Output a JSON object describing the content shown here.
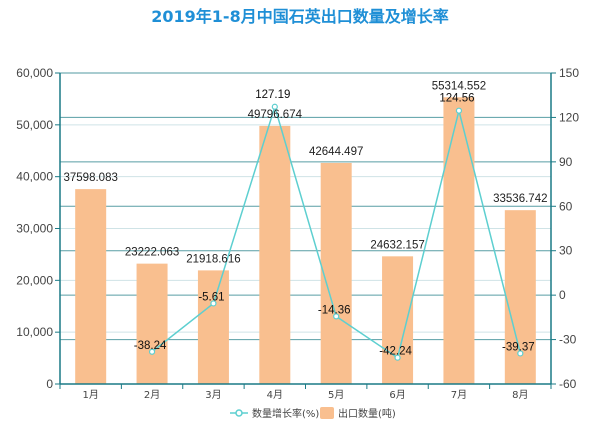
{
  "chart_data": {
    "type": "bar",
    "title": "2019年1-8月中国石英出口数量及增长率",
    "categories": [
      "1月",
      "2月",
      "3月",
      "4月",
      "5月",
      "6月",
      "7月",
      "8月"
    ],
    "series": [
      {
        "name": "出口数量(吨)",
        "type": "bar",
        "axis": "left",
        "values": [
          37598.083,
          23222.063,
          21918.616,
          49796.674,
          42644.497,
          24632.157,
          55314.552,
          33536.742
        ],
        "labels": [
          "37598.083",
          "23222.063",
          "21918.616",
          "49796.674",
          "42644.497",
          "24632.157",
          "55314.552",
          "33536.742"
        ]
      },
      {
        "name": "数量增长率(%)",
        "type": "line",
        "axis": "right",
        "values": [
          null,
          -38.24,
          -5.61,
          127.19,
          -14.36,
          -42.24,
          124.56,
          -39.37
        ],
        "labels": [
          "",
          "-38.24",
          "-5.61",
          "127.19",
          "-14.36",
          "-42.24",
          "124.56",
          "-39.37"
        ]
      }
    ],
    "y_left": {
      "range": [
        0,
        60000
      ],
      "ticks": [
        0,
        10000,
        20000,
        30000,
        40000,
        50000,
        60000
      ],
      "tick_labels": [
        "0",
        "10,000",
        "20,000",
        "30,000",
        "40,000",
        "50,000",
        "60,000"
      ]
    },
    "y_right": {
      "range": [
        -60,
        150
      ],
      "ticks": [
        -60,
        -30,
        0,
        30,
        60,
        90,
        120,
        150
      ],
      "tick_labels": [
        "-60",
        "-30",
        "0",
        "30",
        "60",
        "90",
        "120",
        "150"
      ]
    },
    "grid": true,
    "legend_position": "bottom-center",
    "colors": {
      "title": "#1f8fd6",
      "bar": "#f9bf8f",
      "line": "#5dcfd0",
      "axis_line": "#1a7a86",
      "grid_line": "#3c8c95"
    }
  }
}
